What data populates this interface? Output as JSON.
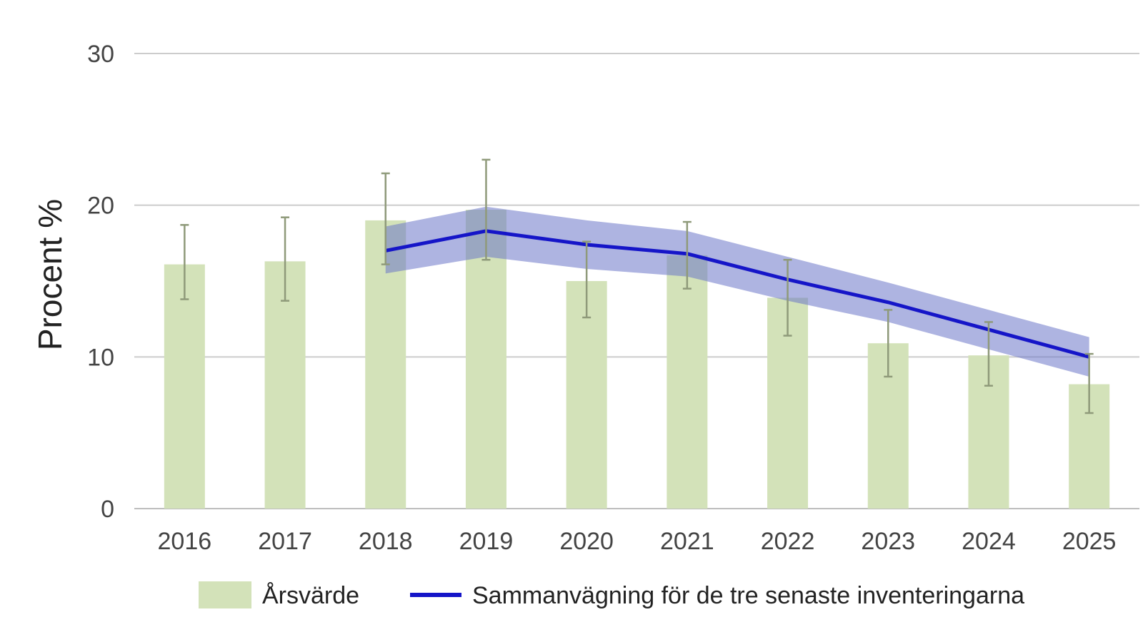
{
  "chart_data": {
    "type": "bar",
    "categories": [
      "2016",
      "2017",
      "2018",
      "2019",
      "2020",
      "2021",
      "2022",
      "2023",
      "2024",
      "2025"
    ],
    "ylabel": "Procent %",
    "xlabel": "",
    "ylim": [
      0,
      30
    ],
    "yticks": [
      "0",
      "10",
      "20",
      "30"
    ],
    "grid": true,
    "legend_position": "bottom",
    "series": [
      {
        "name": "Årsvärde",
        "kind": "bar",
        "color": "#d3e2b9",
        "values": [
          16.1,
          16.3,
          19.0,
          19.7,
          15.0,
          16.7,
          13.9,
          10.9,
          10.1,
          8.2
        ],
        "error_low": [
          13.8,
          13.7,
          16.1,
          16.4,
          12.6,
          14.5,
          11.4,
          8.7,
          8.1,
          6.3
        ],
        "error_high": [
          18.7,
          19.2,
          22.1,
          23.0,
          17.6,
          18.9,
          16.4,
          13.1,
          12.3,
          10.2
        ],
        "error_color": "#8f9a7a"
      },
      {
        "name": "Sammanvägning för de tre senaste inventeringarna",
        "kind": "line",
        "color": "#1515c8",
        "band_color": "#6b77c9",
        "x": [
          "2018",
          "2019",
          "2020",
          "2021",
          "2022",
          "2023",
          "2024",
          "2025"
        ],
        "values": [
          17.0,
          18.3,
          17.4,
          16.8,
          15.1,
          13.6,
          11.8,
          10.0
        ],
        "band_low": [
          15.5,
          16.6,
          15.8,
          15.3,
          13.7,
          12.3,
          10.5,
          8.7
        ],
        "band_high": [
          18.6,
          19.9,
          19.0,
          18.3,
          16.6,
          14.9,
          13.1,
          11.3
        ]
      }
    ]
  }
}
